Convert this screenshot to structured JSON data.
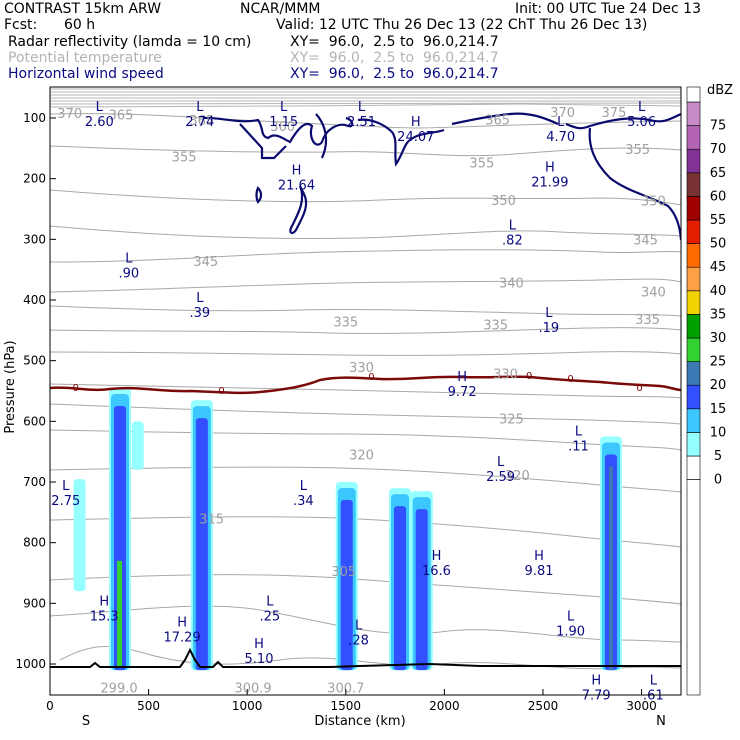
{
  "header": {
    "model": "CONTRAST 15km ARW",
    "institution": "NCAR/MMM",
    "init": "Init: 00 UTC Tue 24 Dec 13",
    "fcst_label": "Fcst:",
    "fcst_value": "60 h",
    "valid": "Valid: 12 UTC Thu 26 Dec 13 (22 ChT Thu 26 Dec 13)",
    "field1": "Radar reflectivity (lamda = 10 cm)",
    "field1_xy": "XY=  96.0,  2.5 to  96.0,214.7",
    "field2": "Potential temperature",
    "field2_xy": "XY=  96.0,  2.5 to  96.0,214.7",
    "field3": "Horizontal wind speed",
    "field3_xy": "XY=  96.0,  2.5 to  96.0,214.7"
  },
  "chart_data": {
    "type": "cross-section",
    "xlabel": "Distance (km)",
    "ylabel": "Pressure (hPa)",
    "xlim": [
      0,
      3200
    ],
    "ylim": [
      1050,
      55
    ],
    "x_ticks": [
      "0",
      "500",
      "1000",
      "1500",
      "2000",
      "2500",
      "3000"
    ],
    "y_ticks": [
      "100",
      "200",
      "300",
      "400",
      "500",
      "600",
      "700",
      "800",
      "900",
      "1000"
    ],
    "x_end_labels": {
      "left": "S",
      "right": "N"
    },
    "colorbar": {
      "unit": "dBZ",
      "levels": [
        "0",
        "5",
        "10",
        "15",
        "20",
        "25",
        "30",
        "35",
        "40",
        "45",
        "50",
        "55",
        "60",
        "65",
        "70",
        "75"
      ],
      "colors": [
        "#ffffff",
        "#96ffff",
        "#3cc8ff",
        "#3250ff",
        "#3c78b4",
        "#32d232",
        "#00a000",
        "#f0d200",
        "#ffa046",
        "#ff6a00",
        "#e61e00",
        "#a00000",
        "#783232",
        "#823296",
        "#b464b4",
        "#c88cc8"
      ]
    },
    "reflectivity_cells": [
      {
        "x": 150,
        "top": 695,
        "bottom": 880,
        "dbz": 5
      },
      {
        "x": 355,
        "top": 545,
        "bottom": 1010,
        "dbz": 15
      },
      {
        "x": 445,
        "top": 600,
        "bottom": 680,
        "dbz": 5
      },
      {
        "x": 770,
        "top": 565,
        "bottom": 1010,
        "dbz": 15
      },
      {
        "x": 1505,
        "top": 700,
        "bottom": 1010,
        "dbz": 15
      },
      {
        "x": 1775,
        "top": 710,
        "bottom": 1010,
        "dbz": 15
      },
      {
        "x": 1885,
        "top": 715,
        "bottom": 1010,
        "dbz": 15
      },
      {
        "x": 2845,
        "top": 625,
        "bottom": 1010,
        "dbz": 20
      }
    ],
    "theta_labels": [
      {
        "text": "370",
        "x": 100,
        "p": 93
      },
      {
        "text": "365",
        "x": 360,
        "p": 96
      },
      {
        "text": "365",
        "x": 770,
        "p": 105
      },
      {
        "text": "360",
        "x": 1180,
        "p": 115
      },
      {
        "text": "365",
        "x": 2270,
        "p": 104
      },
      {
        "text": "370",
        "x": 2600,
        "p": 92
      },
      {
        "text": "375",
        "x": 2860,
        "p": 92
      },
      {
        "text": "355",
        "x": 680,
        "p": 165
      },
      {
        "text": "355",
        "x": 2190,
        "p": 175
      },
      {
        "text": "355",
        "x": 2980,
        "p": 153
      },
      {
        "text": "350",
        "x": 2300,
        "p": 237
      },
      {
        "text": "350",
        "x": 3060,
        "p": 238
      },
      {
        "text": "345",
        "x": 790,
        "p": 337
      },
      {
        "text": "345",
        "x": 3020,
        "p": 302
      },
      {
        "text": "340",
        "x": 2340,
        "p": 373
      },
      {
        "text": "340",
        "x": 3060,
        "p": 388
      },
      {
        "text": "335",
        "x": 1500,
        "p": 437
      },
      {
        "text": "335",
        "x": 2260,
        "p": 442
      },
      {
        "text": "335",
        "x": 3030,
        "p": 433
      },
      {
        "text": "330",
        "x": 1580,
        "p": 512
      },
      {
        "text": "330",
        "x": 2310,
        "p": 523
      },
      {
        "text": "325",
        "x": 2340,
        "p": 597
      },
      {
        "text": "320",
        "x": 1580,
        "p": 656
      },
      {
        "text": "320",
        "x": 2370,
        "p": 690
      },
      {
        "text": "315",
        "x": 820,
        "p": 762
      },
      {
        "text": "305",
        "x": 1490,
        "p": 848
      },
      {
        "text": "300.9",
        "x": 1030,
        "p": 1040
      },
      {
        "text": "300.7",
        "x": 1500,
        "p": 1040
      },
      {
        "text": "299.0",
        "x": 350,
        "p": 1040
      }
    ],
    "wind_extrema": [
      {
        "type": "L",
        "value": "2.60",
        "x": 250,
        "p": 95
      },
      {
        "type": "L",
        "value": "2.74",
        "x": 760,
        "p": 95
      },
      {
        "type": "L",
        "value": "1.15",
        "x": 1185,
        "p": 95
      },
      {
        "type": "L",
        "value": "2.51",
        "x": 1580,
        "p": 95
      },
      {
        "type": "H",
        "value": "24.07",
        "x": 1855,
        "p": 120
      },
      {
        "type": "L",
        "value": "4.70",
        "x": 2590,
        "p": 120
      },
      {
        "type": "L",
        "value": "5.06",
        "x": 3000,
        "p": 95
      },
      {
        "type": "H",
        "value": "21.99",
        "x": 2535,
        "p": 195
      },
      {
        "type": "H",
        "value": "21.64",
        "x": 1250,
        "p": 200
      },
      {
        "type": "L",
        "value": ".82",
        "x": 2345,
        "p": 290
      },
      {
        "type": "L",
        "value": ".90",
        "x": 400,
        "p": 345
      },
      {
        "type": "L",
        "value": ".39",
        "x": 760,
        "p": 410
      },
      {
        "type": "L",
        "value": ".19",
        "x": 2530,
        "p": 435
      },
      {
        "type": "H",
        "value": "9.72",
        "x": 2090,
        "p": 540
      },
      {
        "type": "L",
        "value": ".11",
        "x": 2680,
        "p": 630
      },
      {
        "type": "L",
        "value": "2.59",
        "x": 2285,
        "p": 680
      },
      {
        "type": "L",
        "value": "2.75",
        "x": 80,
        "p": 720
      },
      {
        "type": "L",
        "value": ".34",
        "x": 1285,
        "p": 720
      },
      {
        "type": "H",
        "value": "16.6",
        "x": 1960,
        "p": 835
      },
      {
        "type": "H",
        "value": "9.81",
        "x": 2480,
        "p": 835
      },
      {
        "type": "H",
        "value": "15.3",
        "x": 275,
        "p": 910
      },
      {
        "type": "L",
        "value": ".25",
        "x": 1115,
        "p": 910
      },
      {
        "type": "L",
        "value": "1.90",
        "x": 2640,
        "p": 935
      },
      {
        "type": "H",
        "value": "17.29",
        "x": 670,
        "p": 945
      },
      {
        "type": "L",
        "value": ".28",
        "x": 1565,
        "p": 950
      },
      {
        "type": "H",
        "value": "5.10",
        "x": 1060,
        "p": 980
      },
      {
        "type": "H",
        "value": "7.79",
        "x": 2770,
        "p": 1040
      },
      {
        "type": "L",
        "value": ".61",
        "x": 3060,
        "p": 1040
      }
    ],
    "zero_labels": [
      {
        "text": "0",
        "x": 130,
        "p": 545
      },
      {
        "text": "0",
        "x": 870,
        "p": 550
      },
      {
        "text": "0",
        "x": 1630,
        "p": 527
      },
      {
        "text": "0",
        "x": 2430,
        "p": 525
      },
      {
        "text": "0",
        "x": 2640,
        "p": 530
      },
      {
        "text": "0",
        "x": 2990,
        "p": 545
      }
    ]
  }
}
